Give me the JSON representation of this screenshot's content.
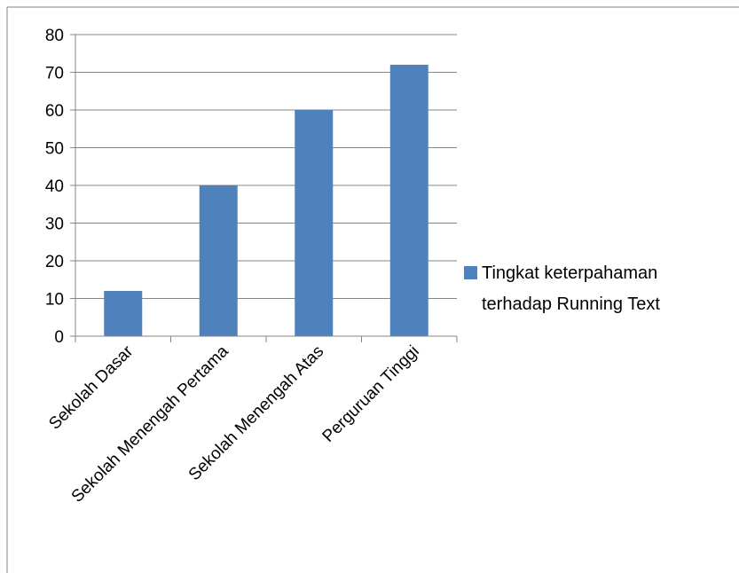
{
  "chart_data": {
    "type": "bar",
    "categories": [
      "Sekolah Dasar",
      "Sekolah Menengah Pertama",
      "Sekolah Menengah Atas",
      "Perguruan Tinggi"
    ],
    "series": [
      {
        "name": "Tingkat keterpahaman terhadap Running Text",
        "name_lines": [
          "Tingkat keterpahaman",
          "terhadap Running Text"
        ],
        "values": [
          12,
          40,
          60,
          72
        ],
        "color": "#4F81BD"
      }
    ],
    "yticks": [
      0,
      10,
      20,
      30,
      40,
      50,
      60,
      70,
      80
    ],
    "ylim": [
      0,
      80
    ],
    "grid": true,
    "legend_position": "right",
    "title": "",
    "xlabel": "",
    "ylabel": ""
  },
  "colors": {
    "bar": "#4F81BD",
    "grid": "#868686",
    "axis": "#868686",
    "frame": "#868686"
  }
}
